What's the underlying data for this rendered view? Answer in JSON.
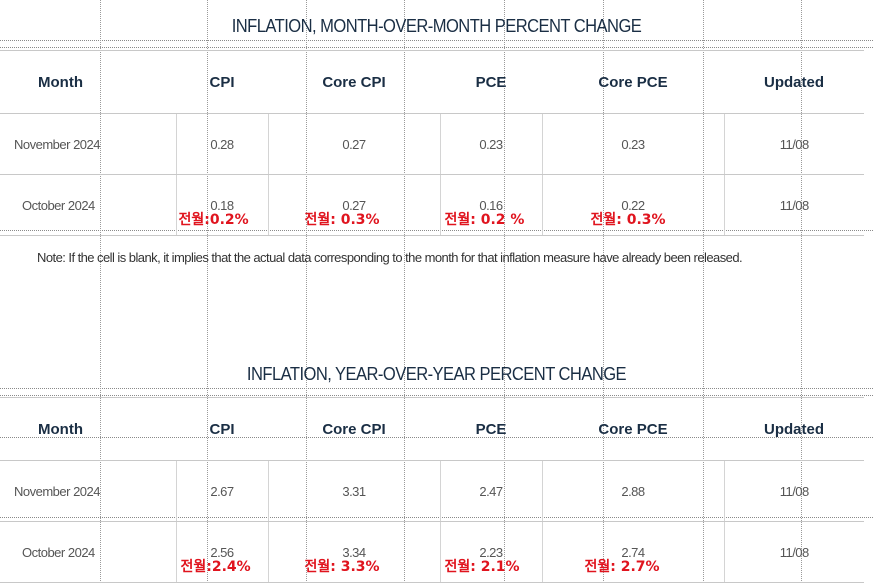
{
  "mom": {
    "title": "INFLATION, MONTH-OVER-MONTH PERCENT CHANGE",
    "headers": [
      "Month",
      "CPI",
      "Core CPI",
      "PCE",
      "Core PCE",
      "Updated"
    ],
    "rows": [
      {
        "month": "November 2024",
        "cpi": "0.28",
        "core_cpi": "0.27",
        "pce": "0.23",
        "core_pce": "0.23",
        "updated": "11/08"
      },
      {
        "month": "October 2024",
        "cpi": "0.18",
        "core_cpi": "0.27",
        "pce": "0.16",
        "core_pce": "0.22",
        "updated": "11/08"
      }
    ],
    "annotations": {
      "cpi": "전월:0.2%",
      "core_cpi": "전월: 0.3%",
      "pce": "전월: 0.2 %",
      "core_pce": "전월: 0.3%"
    }
  },
  "note": "Note: If the cell is blank, it implies that the actual data corresponding to the month for that inflation measure have already been released.",
  "yoy": {
    "title": "INFLATION, YEAR-OVER-YEAR PERCENT CHANGE",
    "headers": [
      "Month",
      "CPI",
      "Core CPI",
      "PCE",
      "Core PCE",
      "Updated"
    ],
    "rows": [
      {
        "month": "November 2024",
        "cpi": "2.67",
        "core_cpi": "3.31",
        "pce": "2.47",
        "core_pce": "2.88",
        "updated": "11/08"
      },
      {
        "month": "October 2024",
        "cpi": "2.56",
        "core_cpi": "3.34",
        "pce": "2.23",
        "core_pce": "2.74",
        "updated": "11/08"
      }
    ],
    "annotations": {
      "cpi": "전월:2.4%",
      "core_cpi": "전월: 3.3%",
      "pce": "전월: 2.1%",
      "core_pce": "전월: 2.7%"
    }
  },
  "colors": {
    "header_text": "#1a2e44",
    "annotation": "#e0141e",
    "border": "#c8c8c8"
  }
}
